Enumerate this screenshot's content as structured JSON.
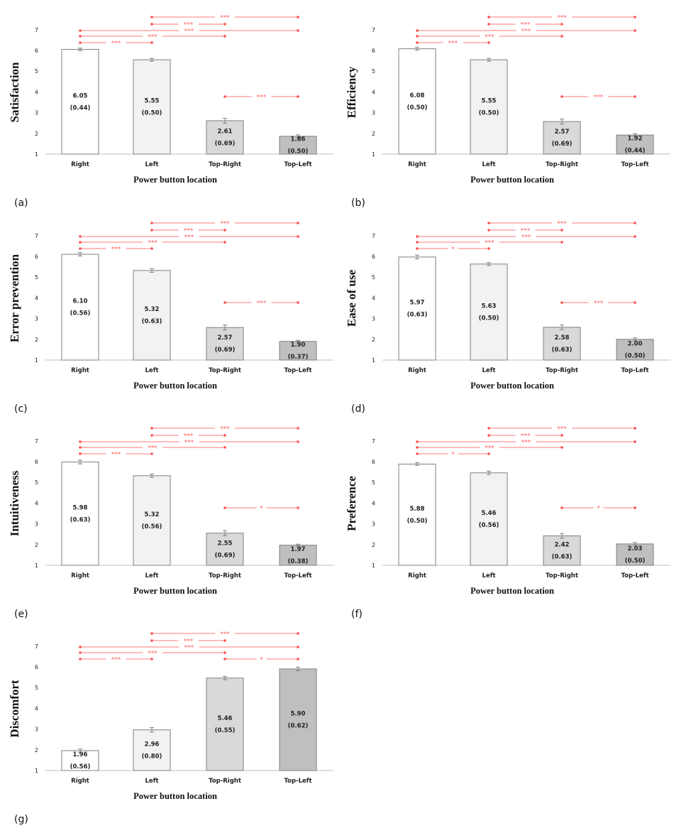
{
  "chart_data": [
    {
      "type": "bar",
      "panel_label": "(a)",
      "ylabel": "Satisfaction",
      "xlabel": "Power button location",
      "ylim": [
        1,
        7
      ],
      "yticks": [
        "1",
        "2",
        "3",
        "4",
        "5",
        "6",
        "7"
      ],
      "categories": [
        "Right",
        "Left",
        "Top-Right",
        "Top-Left"
      ],
      "values": [
        6.05,
        5.55,
        2.61,
        1.86
      ],
      "value_labels": [
        "6.05",
        "5.55",
        "2.61",
        "1.86"
      ],
      "sd_labels": [
        "(0.44)",
        "(0.50)",
        "(0.69)",
        "(0.50)"
      ],
      "errors": [
        0.06,
        0.07,
        0.12,
        0.07
      ],
      "significance": [
        {
          "from": 1,
          "to": 3,
          "label": "***"
        },
        {
          "from": 1,
          "to": 2,
          "label": "***"
        },
        {
          "from": 0,
          "to": 3,
          "label": "***"
        },
        {
          "from": 0,
          "to": 2,
          "label": "***"
        },
        {
          "from": 0,
          "to": 1,
          "label": "***"
        },
        {
          "from": 2,
          "to": 3,
          "label": "***"
        }
      ]
    },
    {
      "type": "bar",
      "panel_label": "(b)",
      "ylabel": "Efficiency",
      "xlabel": "Power button location",
      "ylim": [
        1,
        7
      ],
      "yticks": [
        "1",
        "2",
        "3",
        "4",
        "5",
        "6",
        "7"
      ],
      "categories": [
        "Right",
        "Left",
        "Top-Right",
        "Top-Left"
      ],
      "values": [
        6.08,
        5.55,
        2.57,
        1.92
      ],
      "value_labels": [
        "6.08",
        "5.55",
        "2.57",
        "1.92"
      ],
      "sd_labels": [
        "(0.50)",
        "(0.50)",
        "(0.69)",
        "(0.44)"
      ],
      "errors": [
        0.07,
        0.07,
        0.12,
        0.06
      ],
      "significance": [
        {
          "from": 1,
          "to": 3,
          "label": "***"
        },
        {
          "from": 1,
          "to": 2,
          "label": "***"
        },
        {
          "from": 0,
          "to": 3,
          "label": "***"
        },
        {
          "from": 0,
          "to": 2,
          "label": "***"
        },
        {
          "from": 0,
          "to": 1,
          "label": "***"
        },
        {
          "from": 2,
          "to": 3,
          "label": "***"
        }
      ]
    },
    {
      "type": "bar",
      "panel_label": "(c)",
      "ylabel": "Error prevention",
      "xlabel": "Power button location",
      "ylim": [
        1,
        7
      ],
      "yticks": [
        "1",
        "2",
        "3",
        "4",
        "5",
        "6",
        "7"
      ],
      "categories": [
        "Right",
        "Left",
        "Top-Right",
        "Top-Left"
      ],
      "values": [
        6.1,
        5.32,
        2.57,
        1.9
      ],
      "value_labels": [
        "6.10",
        "5.32",
        "2.57",
        "1.90"
      ],
      "sd_labels": [
        "(0.56)",
        "(0.63)",
        "(0.69)",
        "(0.37)"
      ],
      "errors": [
        0.08,
        0.09,
        0.12,
        0.05
      ],
      "significance": [
        {
          "from": 1,
          "to": 3,
          "label": "***"
        },
        {
          "from": 1,
          "to": 2,
          "label": "***"
        },
        {
          "from": 0,
          "to": 3,
          "label": "***"
        },
        {
          "from": 0,
          "to": 2,
          "label": "***"
        },
        {
          "from": 0,
          "to": 1,
          "label": "***"
        },
        {
          "from": 2,
          "to": 3,
          "label": "***"
        }
      ]
    },
    {
      "type": "bar",
      "panel_label": "(d)",
      "ylabel": "Ease of use",
      "xlabel": "Power button location",
      "ylim": [
        1,
        7
      ],
      "yticks": [
        "1",
        "2",
        "3",
        "4",
        "5",
        "6",
        "7"
      ],
      "categories": [
        "Right",
        "Left",
        "Top-Right",
        "Top-Left"
      ],
      "values": [
        5.97,
        5.63,
        2.58,
        2.0
      ],
      "value_labels": [
        "5.97",
        "5.63",
        "2.58",
        "2.00"
      ],
      "sd_labels": [
        "(0.63)",
        "(0.50)",
        "(0.63)",
        "(0.50)"
      ],
      "errors": [
        0.09,
        0.07,
        0.11,
        0.07
      ],
      "significance": [
        {
          "from": 1,
          "to": 3,
          "label": "***"
        },
        {
          "from": 1,
          "to": 2,
          "label": "***"
        },
        {
          "from": 0,
          "to": 3,
          "label": "***"
        },
        {
          "from": 0,
          "to": 2,
          "label": "***"
        },
        {
          "from": 0,
          "to": 1,
          "label": "*"
        },
        {
          "from": 2,
          "to": 3,
          "label": "***"
        }
      ]
    },
    {
      "type": "bar",
      "panel_label": "(e)",
      "ylabel": "Intuitiveness",
      "xlabel": "Power button location",
      "ylim": [
        1,
        7
      ],
      "yticks": [
        "1",
        "2",
        "3",
        "4",
        "5",
        "6",
        "7"
      ],
      "categories": [
        "Right",
        "Left",
        "Top-Right",
        "Top-Left"
      ],
      "values": [
        5.98,
        5.32,
        2.55,
        1.97
      ],
      "value_labels": [
        "5.98",
        "5.32",
        "2.55",
        "1.97"
      ],
      "sd_labels": [
        "(0.63)",
        "(0.56)",
        "(0.69)",
        "(0.38)"
      ],
      "errors": [
        0.09,
        0.08,
        0.12,
        0.05
      ],
      "significance": [
        {
          "from": 1,
          "to": 3,
          "label": "***"
        },
        {
          "from": 1,
          "to": 2,
          "label": "***"
        },
        {
          "from": 0,
          "to": 3,
          "label": "***"
        },
        {
          "from": 0,
          "to": 2,
          "label": "***"
        },
        {
          "from": 0,
          "to": 1,
          "label": "***"
        },
        {
          "from": 2,
          "to": 3,
          "label": "*"
        }
      ]
    },
    {
      "type": "bar",
      "panel_label": "(f)",
      "ylabel": "Preference",
      "xlabel": "Power button location",
      "ylim": [
        1,
        7
      ],
      "yticks": [
        "1",
        "2",
        "3",
        "4",
        "5",
        "6",
        "7"
      ],
      "categories": [
        "Right",
        "Left",
        "Top-Right",
        "Top-Left"
      ],
      "values": [
        5.88,
        5.46,
        2.42,
        2.03
      ],
      "value_labels": [
        "5.88",
        "5.46",
        "2.42",
        "2.03"
      ],
      "sd_labels": [
        "(0.50)",
        "(0.56)",
        "(0.63)",
        "(0.50)"
      ],
      "errors": [
        0.07,
        0.08,
        0.11,
        0.07
      ],
      "significance": [
        {
          "from": 1,
          "to": 3,
          "label": "***"
        },
        {
          "from": 1,
          "to": 2,
          "label": "***"
        },
        {
          "from": 0,
          "to": 3,
          "label": "***"
        },
        {
          "from": 0,
          "to": 2,
          "label": "***"
        },
        {
          "from": 0,
          "to": 1,
          "label": "*"
        },
        {
          "from": 2,
          "to": 3,
          "label": "*"
        }
      ]
    },
    {
      "type": "bar",
      "panel_label": "(g)",
      "ylabel": "Discomfort",
      "xlabel": "Power button location",
      "ylim": [
        1,
        7
      ],
      "yticks": [
        "1",
        "2",
        "3",
        "4",
        "5",
        "6",
        "7"
      ],
      "categories": [
        "Right",
        "Left",
        "Top-Right",
        "Top-Left"
      ],
      "values": [
        1.96,
        2.96,
        5.46,
        5.9
      ],
      "value_labels": [
        "1.96",
        "2.96",
        "5.46",
        "5.90"
      ],
      "sd_labels": [
        "(0.56)",
        "(0.80)",
        "(0.55)",
        "(0.62)"
      ],
      "errors": [
        0.08,
        0.11,
        0.08,
        0.09
      ],
      "significance": [
        {
          "from": 1,
          "to": 3,
          "label": "***"
        },
        {
          "from": 1,
          "to": 2,
          "label": "***"
        },
        {
          "from": 0,
          "to": 3,
          "label": "***"
        },
        {
          "from": 0,
          "to": 2,
          "label": "***"
        },
        {
          "from": 0,
          "to": 1,
          "label": "***"
        },
        {
          "from": 2,
          "to": 3,
          "label": "*"
        }
      ]
    }
  ],
  "colors": {
    "bar_fills": [
      "#ffffff",
      "#f2f2f2",
      "#d9d9d9",
      "#bfbfbf"
    ],
    "bar_stroke": "#7f7f7f",
    "significance": "#ff4d4d",
    "axis": "#bfbfbf"
  }
}
